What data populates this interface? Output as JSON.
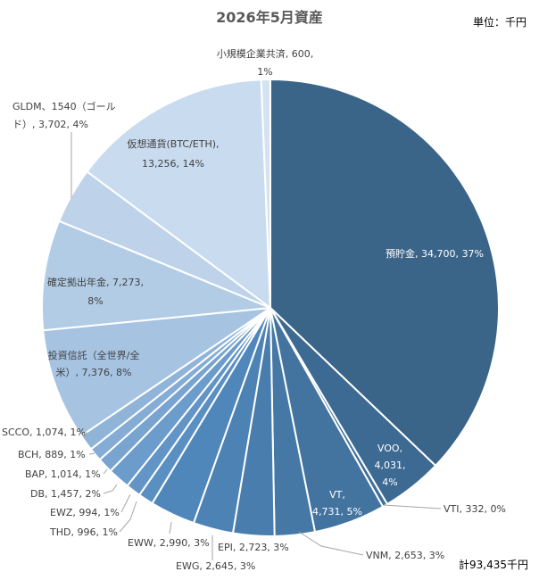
{
  "title": "2026年5月資産",
  "unit_label": "単位：千円",
  "total_label": "計93,435千円",
  "chart_data": {
    "type": "pie",
    "start_angle_deg": 0,
    "direction": "clockwise",
    "slices": [
      {
        "name": "預貯金",
        "value": 34700,
        "percent": "37%",
        "color": "#3a6488",
        "label": "預貯金, 34,700, 37%"
      },
      {
        "name": "VOO",
        "value": 4031,
        "percent": "4%",
        "color": "#3d6a92",
        "label": "VOO, 4,031, 4%"
      },
      {
        "name": "VTI",
        "value": 332,
        "percent": "0%",
        "color": "#40709a",
        "label": "VTI, 332, 0%"
      },
      {
        "name": "VT",
        "value": 4731,
        "percent": "5%",
        "color": "#4374a0",
        "label": "VT, 4,731, 5%"
      },
      {
        "name": "VNM",
        "value": 2653,
        "percent": "3%",
        "color": "#4678a6",
        "label": "VNM, 2,653, 3%"
      },
      {
        "name": "EPI",
        "value": 2723,
        "percent": "3%",
        "color": "#497dad",
        "label": "EPI, 2,723, 3%"
      },
      {
        "name": "EWG",
        "value": 2645,
        "percent": "3%",
        "color": "#4c82b4",
        "label": "EWG, 2,645, 3%"
      },
      {
        "name": "EWW",
        "value": 2990,
        "percent": "3%",
        "color": "#5087ba",
        "label": "EWW, 2,990, 3%"
      },
      {
        "name": "THD",
        "value": 996,
        "percent": "1%",
        "color": "#5a8fc2",
        "label": "THD, 996, 1%"
      },
      {
        "name": "EWZ",
        "value": 994,
        "percent": "1%",
        "color": "#6295c6",
        "label": "EWZ, 994, 1%"
      },
      {
        "name": "DB",
        "value": 1457,
        "percent": "2%",
        "color": "#6c9ccb",
        "label": "DB, 1,457, 2%"
      },
      {
        "name": "BAP",
        "value": 1014,
        "percent": "1%",
        "color": "#78a4cf",
        "label": "BAP, 1,014, 1%"
      },
      {
        "name": "BCH",
        "value": 889,
        "percent": "1%",
        "color": "#84acd4",
        "label": "BCH, 889, 1%"
      },
      {
        "name": "SCCO",
        "value": 1074,
        "percent": "1%",
        "color": "#90b4d8",
        "label": "SCCO, 1,074, 1%"
      },
      {
        "name": "投資信託（全世界/全米）",
        "value": 7376,
        "percent": "8%",
        "color": "#a6c3e2",
        "label": "投資信託（全世界/全米）, 7,376, 8%"
      },
      {
        "name": "確定拠出年金",
        "value": 7273,
        "percent": "8%",
        "color": "#b3cce6",
        "label": "確定拠出年金, 7,273, 8%"
      },
      {
        "name": "GLDM、1540（ゴールド）",
        "value": 3702,
        "percent": "4%",
        "color": "#bed3ea",
        "label": "GLDM、1540（ゴールド）, 3,702, 4%"
      },
      {
        "name": "仮想通貨(BTC/ETH)",
        "value": 13256,
        "percent": "14%",
        "color": "#c9dbee",
        "label": "仮想通貨(BTC/ETH), 13,256, 14%"
      },
      {
        "name": "小規模企業共済",
        "value": 600,
        "percent": "1%",
        "color": "#d4e2f1",
        "label": "小規模企業共済, 600, 1%"
      }
    ]
  }
}
